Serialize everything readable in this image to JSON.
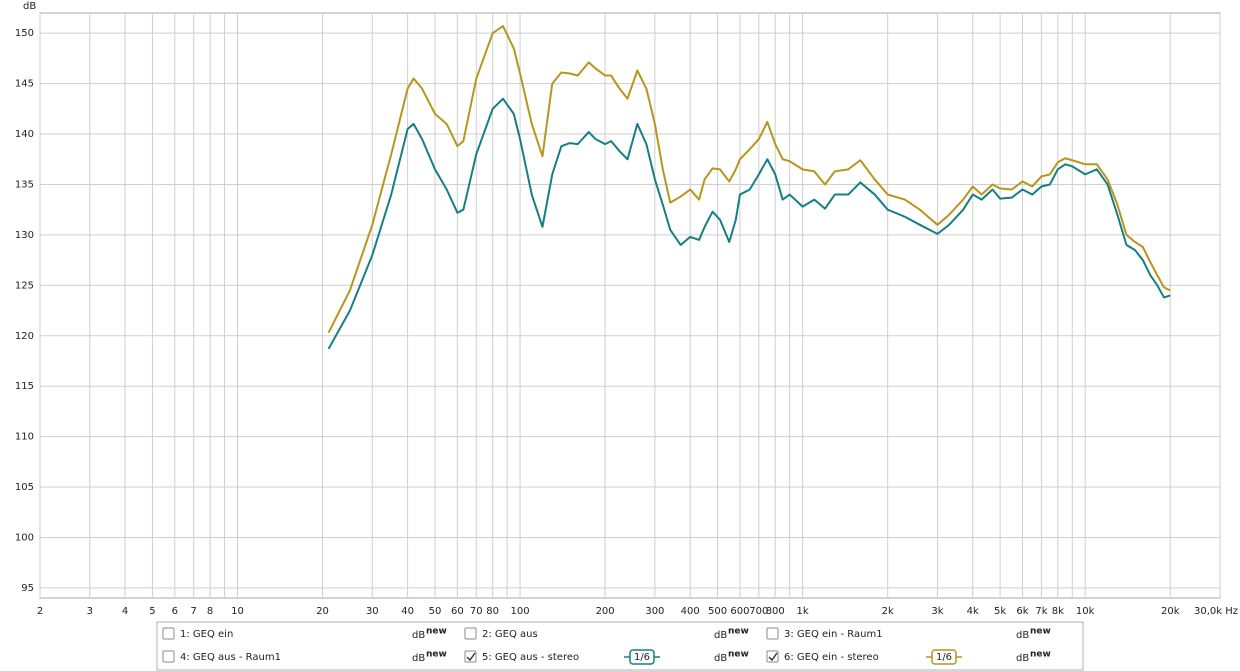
{
  "chart_data": {
    "type": "line",
    "ylabel": "dB",
    "log_x": true,
    "grid": true,
    "xlim": [
      2,
      30000
    ],
    "ylim": [
      94,
      152
    ],
    "yticks": [
      95,
      100,
      105,
      110,
      115,
      120,
      125,
      130,
      135,
      140,
      145,
      150
    ],
    "xticks": [
      2,
      3,
      4,
      5,
      6,
      7,
      8,
      10,
      20,
      30,
      40,
      50,
      60,
      70,
      80,
      100,
      200,
      300,
      400,
      500,
      600,
      700,
      800,
      {
        "value": 1000,
        "label": "1k"
      },
      {
        "value": 2000,
        "label": "2k"
      },
      {
        "value": 3000,
        "label": "3k"
      },
      {
        "value": 4000,
        "label": "4k"
      },
      {
        "value": 5000,
        "label": "5k"
      },
      {
        "value": 6000,
        "label": "6k"
      },
      {
        "value": 7000,
        "label": "7k"
      },
      {
        "value": 8000,
        "label": "8k"
      },
      {
        "value": 10000,
        "label": "10k"
      },
      {
        "value": 20000,
        "label": "20k"
      },
      {
        "value": 30000,
        "label": "30,0k Hz"
      }
    ],
    "xminor": [
      9,
      90,
      900,
      9000
    ],
    "x": [
      21,
      25,
      30,
      35,
      40,
      42,
      45,
      50,
      55,
      60,
      63,
      70,
      80,
      87,
      95,
      100,
      110,
      120,
      130,
      140,
      150,
      160,
      175,
      185,
      200,
      210,
      225,
      240,
      260,
      280,
      300,
      320,
      340,
      370,
      400,
      430,
      450,
      480,
      510,
      550,
      580,
      600,
      650,
      700,
      750,
      800,
      850,
      900,
      1000,
      1100,
      1200,
      1300,
      1450,
      1600,
      1800,
      2000,
      2300,
      2600,
      3000,
      3300,
      3700,
      4000,
      4300,
      4700,
      5000,
      5500,
      6000,
      6500,
      7000,
      7500,
      8000,
      8500,
      9000,
      10000,
      11000,
      12000,
      13000,
      14000,
      15000,
      16000,
      17000,
      18000,
      19000,
      20000
    ],
    "series": [
      {
        "name": "5: GEQ aus - stereo",
        "color": "#167f86",
        "values": [
          118.7,
          122.5,
          128,
          134,
          140.5,
          141,
          139.5,
          136.5,
          134.5,
          132.2,
          132.5,
          138,
          142.5,
          143.5,
          142,
          139.5,
          134,
          130.8,
          136,
          138.8,
          139.1,
          139,
          140.2,
          139.5,
          139,
          139.3,
          138.3,
          137.5,
          141,
          139,
          135.5,
          133,
          130.5,
          129,
          129.8,
          129.5,
          130.8,
          132.3,
          131.5,
          129.3,
          131.5,
          134,
          134.5,
          136,
          137.5,
          136,
          133.5,
          134,
          132.8,
          133.5,
          132.6,
          134,
          134,
          135.2,
          134,
          132.5,
          131.8,
          131,
          130.1,
          131,
          132.5,
          134,
          133.5,
          134.5,
          133.6,
          133.7,
          134.5,
          134,
          134.8,
          135,
          136.5,
          137,
          136.8,
          136,
          136.5,
          135,
          132,
          129,
          128.5,
          127.5,
          126,
          125,
          123.8,
          124
        ]
      },
      {
        "name": "6: GEQ ein - stereo",
        "color": "#b8961c",
        "values": [
          120.3,
          124.5,
          131,
          138,
          144.5,
          145.5,
          144.5,
          142,
          141,
          138.8,
          139.3,
          145.5,
          150,
          150.7,
          148.5,
          146,
          141,
          137.8,
          145,
          146.1,
          146,
          145.8,
          147.1,
          146.5,
          145.8,
          145.8,
          144.5,
          143.5,
          146.3,
          144.5,
          141,
          136.5,
          133.2,
          133.8,
          134.5,
          133.5,
          135.5,
          136.6,
          136.5,
          135.3,
          136.5,
          137.5,
          138.5,
          139.5,
          141.2,
          139,
          137.5,
          137.3,
          136.5,
          136.3,
          135,
          136.3,
          136.5,
          137.4,
          135.5,
          134,
          133.5,
          132.5,
          131,
          132,
          133.5,
          134.8,
          134,
          135,
          134.6,
          134.5,
          135.3,
          134.8,
          135.8,
          136,
          137.2,
          137.6,
          137.4,
          137,
          137,
          135.5,
          133,
          130,
          129.3,
          128.8,
          127.3,
          126,
          124.8,
          124.5
        ]
      }
    ],
    "legend": {
      "items": [
        {
          "label": "1: GEQ ein",
          "color": "#c0392b",
          "checked": false,
          "tag": [
            "dB",
            "new"
          ],
          "tag_color": "#c0392b"
        },
        {
          "label": "2: GEQ aus",
          "color": "#2e8b2e",
          "checked": false,
          "tag": [
            "dB",
            "new"
          ],
          "tag_color": "#2e8b2e"
        },
        {
          "label": "3: GEQ ein - Raum1",
          "color": "#333366",
          "checked": false,
          "tag": [
            "dB",
            "new"
          ],
          "tag_color": "#1f3fa8"
        },
        {
          "label": "4: GEQ aus - Raum1",
          "color": "#9b2b9b",
          "checked": false,
          "tag": [
            "dB",
            "new"
          ],
          "tag_color": "#9b2b9b"
        },
        {
          "label": "5: GEQ aus - stereo",
          "color": "#167f86",
          "checked": true,
          "tag": [
            "dB",
            "new"
          ],
          "tag_color": "#167f86",
          "smoothing": "1/6"
        },
        {
          "label": "6: GEQ ein - stereo",
          "color": "#b8961c",
          "checked": true,
          "tag": [
            "dB",
            "new"
          ],
          "tag_color": "#1f3fa8",
          "smoothing": "1/6"
        }
      ]
    }
  }
}
